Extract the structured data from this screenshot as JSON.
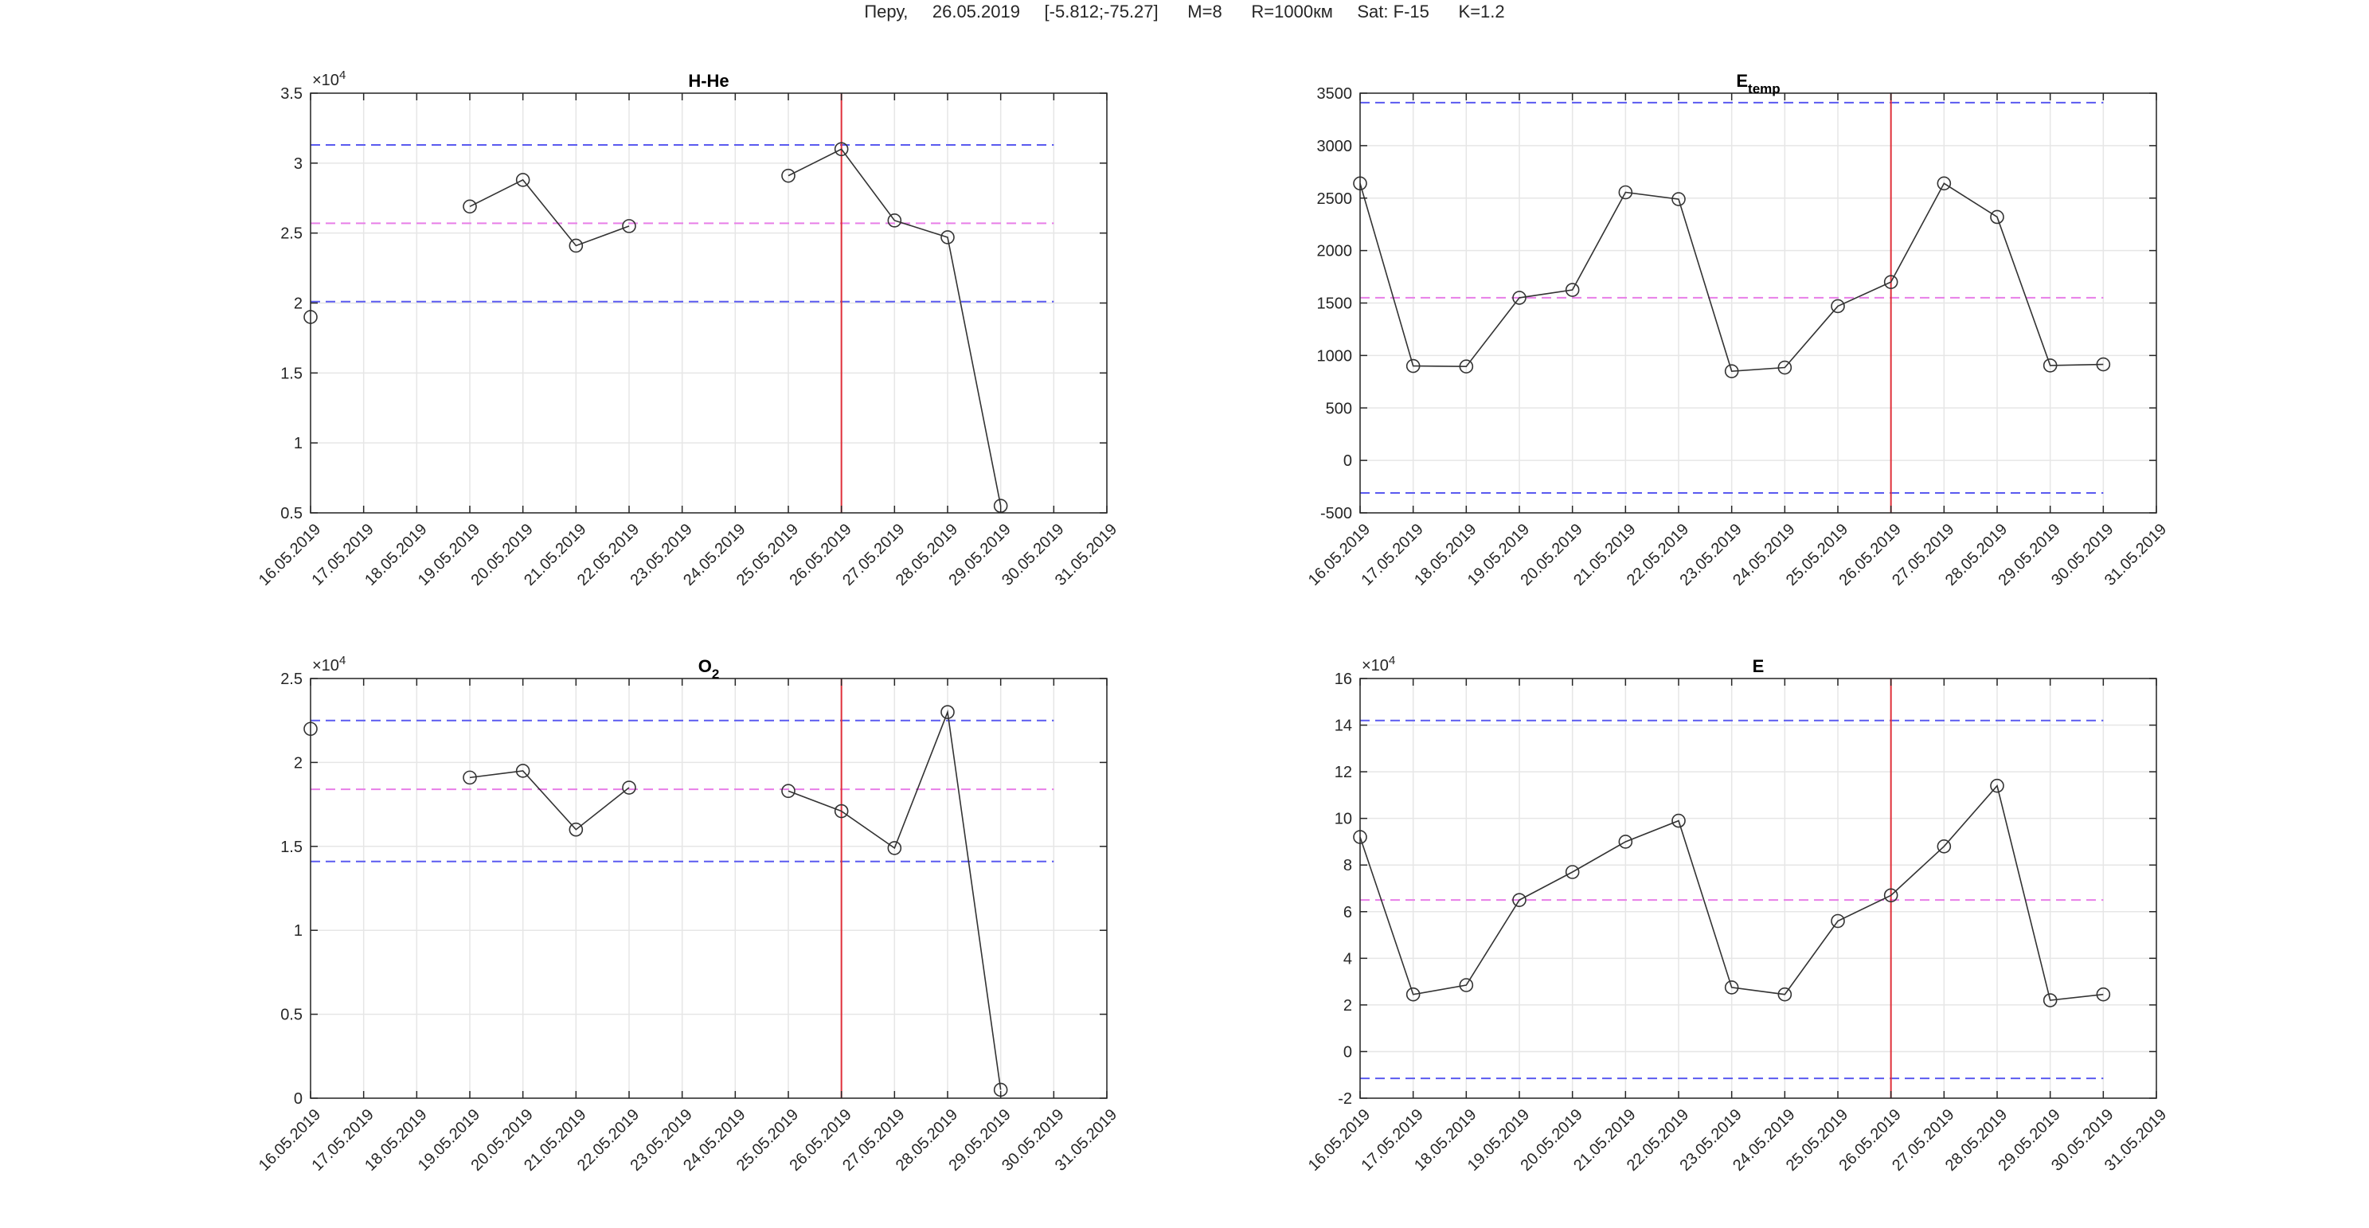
{
  "suptitle": "Перу,     26.05.2019     [-5.812;-75.27]      M=8      R=1000км     Sat: F-15      K=1.2",
  "x_tick_labels": [
    "16.05.2019",
    "17.05.2019",
    "18.05.2019",
    "19.05.2019",
    "20.05.2019",
    "21.05.2019",
    "22.05.2019",
    "23.05.2019",
    "24.05.2019",
    "25.05.2019",
    "26.05.2019",
    "27.05.2019",
    "28.05.2019",
    "29.05.2019",
    "30.05.2019",
    "31.05.2019"
  ],
  "colors": {
    "series": "#333333",
    "upper_lower": "#5a5af0",
    "mean": "#e87ee8",
    "event": "#e0303a",
    "grid": "#e6e6e6",
    "axes": "#262626"
  },
  "chart_data": [
    {
      "type": "line",
      "title": "H-He",
      "title_sub": "",
      "exponent_label": "×10",
      "exponent_power": "4",
      "x": [
        "16.05.2019",
        "17.05.2019",
        "18.05.2019",
        "19.05.2019",
        "20.05.2019",
        "21.05.2019",
        "22.05.2019",
        "23.05.2019",
        "24.05.2019",
        "25.05.2019",
        "26.05.2019",
        "27.05.2019",
        "28.05.2019",
        "29.05.2019",
        "30.05.2019"
      ],
      "values": [
        1.9,
        null,
        null,
        2.69,
        2.88,
        2.41,
        2.55,
        null,
        null,
        2.91,
        3.1,
        2.59,
        2.47,
        0.55,
        null
      ],
      "ylim": [
        0.5,
        3.5
      ],
      "yticks": [
        0.5,
        1,
        1.5,
        2,
        2.5,
        3,
        3.5
      ],
      "ytick_labels": [
        "0.5",
        "1",
        "1.5",
        "2",
        "2.5",
        "3",
        "3.5"
      ],
      "xlim": [
        "16.05.2019",
        "31.05.2019"
      ],
      "upper": 3.13,
      "mean": 2.57,
      "lower": 2.01,
      "event_date": "26.05.2019",
      "grid": true
    },
    {
      "type": "line",
      "title": "E",
      "title_sub": "temp",
      "exponent_label": "",
      "exponent_power": "",
      "x": [
        "16.05.2019",
        "17.05.2019",
        "18.05.2019",
        "19.05.2019",
        "20.05.2019",
        "21.05.2019",
        "22.05.2019",
        "23.05.2019",
        "24.05.2019",
        "25.05.2019",
        "26.05.2019",
        "27.05.2019",
        "28.05.2019",
        "29.05.2019",
        "30.05.2019"
      ],
      "values": [
        2640,
        900,
        895,
        1550,
        1625,
        2555,
        2490,
        850,
        885,
        1470,
        1700,
        2640,
        2320,
        905,
        915
      ],
      "ylim": [
        -500,
        3500
      ],
      "yticks": [
        -500,
        0,
        500,
        1000,
        1500,
        2000,
        2500,
        3000,
        3500
      ],
      "ytick_labels": [
        "-500",
        "0",
        "500",
        "1000",
        "1500",
        "2000",
        "2500",
        "3000",
        "3500"
      ],
      "xlim": [
        "16.05.2019",
        "31.05.2019"
      ],
      "upper": 3410,
      "mean": 1550,
      "lower": -310,
      "event_date": "26.05.2019",
      "grid": true
    },
    {
      "type": "line",
      "title": "O",
      "title_sub": "2",
      "exponent_label": "×10",
      "exponent_power": "4",
      "x": [
        "16.05.2019",
        "17.05.2019",
        "18.05.2019",
        "19.05.2019",
        "20.05.2019",
        "21.05.2019",
        "22.05.2019",
        "23.05.2019",
        "24.05.2019",
        "25.05.2019",
        "26.05.2019",
        "27.05.2019",
        "28.05.2019",
        "29.05.2019",
        "30.05.2019"
      ],
      "values": [
        2.2,
        null,
        null,
        1.91,
        1.95,
        1.6,
        1.85,
        null,
        null,
        1.83,
        1.71,
        1.49,
        2.3,
        0.05,
        null
      ],
      "ylim": [
        0,
        2.5
      ],
      "yticks": [
        0,
        0.5,
        1,
        1.5,
        2,
        2.5
      ],
      "ytick_labels": [
        "0",
        "0.5",
        "1",
        "1.5",
        "2",
        "2.5"
      ],
      "xlim": [
        "16.05.2019",
        "31.05.2019"
      ],
      "upper": 2.25,
      "mean": 1.84,
      "lower": 1.41,
      "event_date": "26.05.2019",
      "grid": true
    },
    {
      "type": "line",
      "title": "E",
      "title_sub": "",
      "exponent_label": "×10",
      "exponent_power": "4",
      "x": [
        "16.05.2019",
        "17.05.2019",
        "18.05.2019",
        "19.05.2019",
        "20.05.2019",
        "21.05.2019",
        "22.05.2019",
        "23.05.2019",
        "24.05.2019",
        "25.05.2019",
        "26.05.2019",
        "27.05.2019",
        "28.05.2019",
        "29.05.2019",
        "30.05.2019"
      ],
      "values": [
        9.2,
        2.45,
        2.85,
        6.5,
        7.7,
        9.0,
        9.9,
        2.75,
        2.45,
        5.6,
        6.7,
        8.8,
        11.4,
        2.2,
        2.45
      ],
      "ylim": [
        -2,
        16
      ],
      "yticks": [
        -2,
        0,
        2,
        4,
        6,
        8,
        10,
        12,
        14,
        16
      ],
      "ytick_labels": [
        "-2",
        "0",
        "2",
        "4",
        "6",
        "8",
        "10",
        "12",
        "14",
        "16"
      ],
      "xlim": [
        "16.05.2019",
        "31.05.2019"
      ],
      "upper": 14.2,
      "mean": 6.5,
      "lower": -1.15,
      "event_date": "26.05.2019",
      "grid": true
    }
  ]
}
